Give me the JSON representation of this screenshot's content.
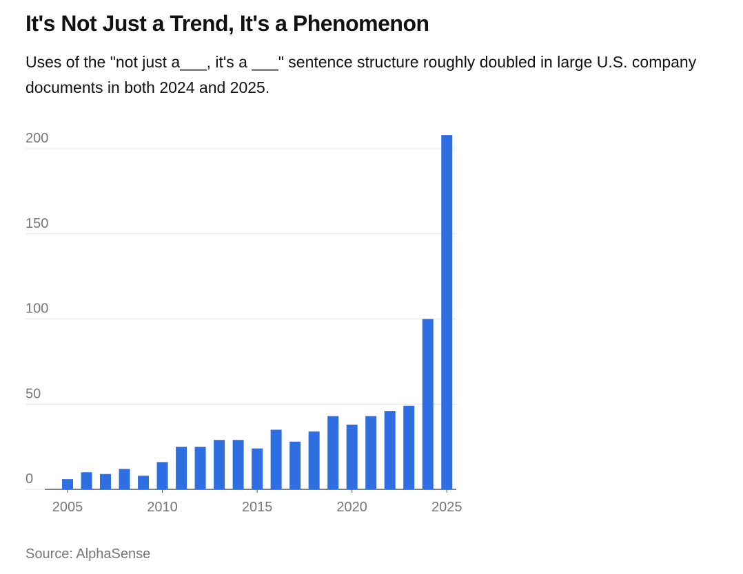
{
  "chart_data": {
    "type": "bar",
    "title": "It's Not Just a Trend, It's a Phenomenon",
    "subtitle": "Uses of the \"not just a___, it's a ___\" sentence structure roughly doubled in large U.S. company documents in both 2024 and 2025.",
    "source": "Source: AlphaSense",
    "x": [
      2005,
      2006,
      2007,
      2008,
      2009,
      2010,
      2011,
      2012,
      2013,
      2014,
      2015,
      2016,
      2017,
      2018,
      2019,
      2020,
      2021,
      2022,
      2023,
      2024,
      2025
    ],
    "values": [
      6,
      10,
      9,
      12,
      8,
      16,
      25,
      25,
      29,
      29,
      24,
      35,
      28,
      34,
      43,
      38,
      43,
      46,
      49,
      100,
      208
    ],
    "color": "#2f6ee0",
    "xlim": [
      2003.8,
      2025.5
    ],
    "xticks": [
      2005,
      2010,
      2015,
      2020,
      2025
    ],
    "ylim": [
      0,
      200
    ],
    "yticks": [
      0,
      50,
      100,
      150,
      200
    ],
    "grid": true
  }
}
